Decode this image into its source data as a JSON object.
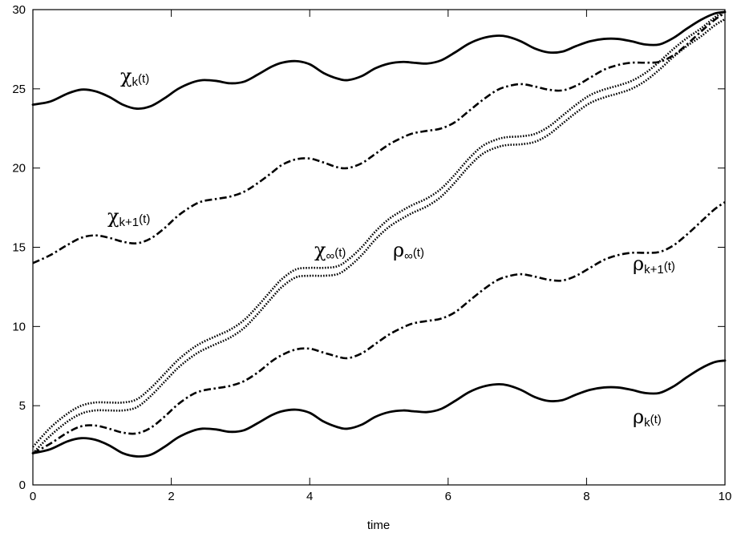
{
  "chart_data": {
    "type": "line",
    "xlabel": "time",
    "ylabel": "",
    "xlim": [
      0,
      10
    ],
    "ylim": [
      0,
      30
    ],
    "x_ticks": [
      "0",
      "2",
      "4",
      "6",
      "8",
      "10"
    ],
    "y_ticks": [
      "0",
      "5",
      "10",
      "15",
      "20",
      "25",
      "30"
    ],
    "grid": false,
    "series": [
      {
        "name": "χk(t)",
        "style": "solid",
        "x": [
          0,
          0.25,
          0.5,
          0.7,
          0.9,
          1.1,
          1.3,
          1.5,
          1.7,
          1.9,
          2.1,
          2.3,
          2.45,
          2.65,
          2.85,
          3.05,
          3.25,
          3.45,
          3.6,
          3.8,
          4.0,
          4.2,
          4.4,
          4.55,
          4.75,
          4.95,
          5.15,
          5.35,
          5.5,
          5.7,
          5.9,
          6.1,
          6.3,
          6.5,
          6.7,
          6.85,
          7.05,
          7.25,
          7.45,
          7.65,
          7.85,
          8.05,
          8.25,
          8.45,
          8.65,
          8.85,
          9.05,
          9.25,
          9.45,
          9.65,
          9.85,
          10.0
        ],
        "values": [
          24.0,
          24.2,
          24.7,
          24.95,
          24.85,
          24.5,
          24.0,
          23.75,
          23.9,
          24.4,
          25.0,
          25.4,
          25.55,
          25.5,
          25.35,
          25.45,
          25.9,
          26.4,
          26.65,
          26.75,
          26.55,
          26.0,
          25.65,
          25.55,
          25.8,
          26.3,
          26.6,
          26.7,
          26.65,
          26.6,
          26.8,
          27.3,
          27.85,
          28.2,
          28.35,
          28.3,
          28.0,
          27.55,
          27.3,
          27.35,
          27.7,
          28.0,
          28.15,
          28.15,
          28.0,
          27.8,
          27.8,
          28.2,
          28.8,
          29.35,
          29.75,
          29.85
        ]
      },
      {
        "name": "χk+1(t)",
        "style": "dashdot",
        "x": [
          0,
          0.25,
          0.5,
          0.7,
          0.9,
          1.1,
          1.3,
          1.5,
          1.7,
          1.9,
          2.1,
          2.3,
          2.45,
          2.65,
          2.85,
          3.05,
          3.25,
          3.45,
          3.6,
          3.8,
          4.0,
          4.2,
          4.4,
          4.55,
          4.75,
          4.95,
          5.15,
          5.35,
          5.5,
          5.7,
          5.9,
          6.1,
          6.3,
          6.5,
          6.7,
          6.85,
          7.05,
          7.25,
          7.45,
          7.65,
          7.85,
          8.05,
          8.25,
          8.45,
          8.65,
          8.85,
          9.05,
          9.25,
          9.45,
          9.65,
          9.85,
          10.0
        ],
        "values": [
          14.0,
          14.5,
          15.15,
          15.6,
          15.75,
          15.6,
          15.35,
          15.25,
          15.55,
          16.2,
          17.0,
          17.6,
          17.9,
          18.05,
          18.2,
          18.5,
          19.05,
          19.7,
          20.2,
          20.55,
          20.6,
          20.35,
          20.05,
          20.0,
          20.3,
          20.9,
          21.5,
          21.95,
          22.2,
          22.35,
          22.5,
          22.9,
          23.6,
          24.3,
          24.9,
          25.15,
          25.3,
          25.15,
          24.95,
          24.9,
          25.2,
          25.7,
          26.2,
          26.5,
          26.65,
          26.65,
          26.7,
          27.1,
          27.8,
          28.6,
          29.35,
          29.8
        ]
      },
      {
        "name": "χ∞(t)",
        "style": "dotted",
        "x": [
          0,
          0.25,
          0.5,
          0.7,
          0.9,
          1.1,
          1.3,
          1.5,
          1.7,
          1.9,
          2.1,
          2.3,
          2.45,
          2.65,
          2.85,
          3.05,
          3.25,
          3.45,
          3.6,
          3.8,
          4.0,
          4.2,
          4.4,
          4.55,
          4.75,
          4.95,
          5.15,
          5.35,
          5.5,
          5.7,
          5.9,
          6.1,
          6.3,
          6.5,
          6.7,
          6.85,
          7.05,
          7.25,
          7.45,
          7.65,
          7.85,
          8.05,
          8.25,
          8.45,
          8.65,
          8.85,
          9.05,
          9.25,
          9.45,
          9.65,
          9.85,
          10.0
        ],
        "values": [
          2.4,
          3.6,
          4.5,
          5.0,
          5.2,
          5.2,
          5.2,
          5.4,
          6.1,
          7.0,
          7.9,
          8.6,
          9.0,
          9.4,
          9.8,
          10.4,
          11.3,
          12.3,
          13.0,
          13.6,
          13.7,
          13.7,
          13.8,
          14.2,
          15.0,
          16.0,
          16.8,
          17.35,
          17.7,
          18.1,
          18.7,
          19.6,
          20.6,
          21.4,
          21.8,
          21.95,
          22.0,
          22.15,
          22.6,
          23.3,
          24.0,
          24.6,
          24.95,
          25.2,
          25.5,
          26.0,
          26.7,
          27.5,
          28.2,
          28.8,
          29.5,
          29.9
        ]
      },
      {
        "name": "ρ∞(t)",
        "style": "dotted",
        "x": [
          0,
          0.25,
          0.5,
          0.7,
          0.9,
          1.1,
          1.3,
          1.5,
          1.7,
          1.9,
          2.1,
          2.3,
          2.45,
          2.65,
          2.85,
          3.05,
          3.25,
          3.45,
          3.6,
          3.8,
          4.0,
          4.2,
          4.4,
          4.55,
          4.75,
          4.95,
          5.15,
          5.35,
          5.5,
          5.7,
          5.9,
          6.1,
          6.3,
          6.5,
          6.7,
          6.85,
          7.05,
          7.25,
          7.45,
          7.65,
          7.85,
          8.05,
          8.25,
          8.45,
          8.65,
          8.85,
          9.05,
          9.25,
          9.45,
          9.65,
          9.85,
          10.0
        ],
        "values": [
          2.0,
          3.1,
          4.0,
          4.5,
          4.7,
          4.7,
          4.7,
          4.9,
          5.6,
          6.5,
          7.4,
          8.1,
          8.5,
          8.9,
          9.3,
          9.9,
          10.8,
          11.8,
          12.5,
          13.1,
          13.2,
          13.2,
          13.3,
          13.7,
          14.5,
          15.5,
          16.3,
          16.85,
          17.2,
          17.6,
          18.2,
          19.1,
          20.1,
          20.9,
          21.3,
          21.45,
          21.5,
          21.65,
          22.1,
          22.8,
          23.5,
          24.1,
          24.45,
          24.7,
          25.0,
          25.5,
          26.2,
          27.0,
          27.7,
          28.3,
          29.0,
          29.4
        ]
      },
      {
        "name": "ρk+1(t)",
        "style": "dashdot",
        "x": [
          0,
          0.25,
          0.5,
          0.7,
          0.9,
          1.1,
          1.3,
          1.5,
          1.7,
          1.9,
          2.1,
          2.3,
          2.45,
          2.65,
          2.85,
          3.05,
          3.25,
          3.45,
          3.6,
          3.8,
          4.0,
          4.2,
          4.4,
          4.55,
          4.75,
          4.95,
          5.15,
          5.35,
          5.5,
          5.7,
          5.9,
          6.1,
          6.3,
          6.5,
          6.7,
          6.85,
          7.05,
          7.25,
          7.45,
          7.65,
          7.85,
          8.05,
          8.25,
          8.45,
          8.65,
          8.85,
          9.05,
          9.25,
          9.45,
          9.65,
          9.85,
          10.0
        ],
        "values": [
          2.0,
          2.6,
          3.3,
          3.7,
          3.75,
          3.55,
          3.3,
          3.25,
          3.6,
          4.3,
          5.1,
          5.7,
          5.95,
          6.1,
          6.25,
          6.55,
          7.1,
          7.8,
          8.2,
          8.55,
          8.6,
          8.35,
          8.1,
          8.0,
          8.3,
          8.9,
          9.5,
          9.95,
          10.2,
          10.35,
          10.5,
          10.9,
          11.6,
          12.3,
          12.9,
          13.15,
          13.3,
          13.15,
          12.95,
          12.9,
          13.2,
          13.7,
          14.2,
          14.5,
          14.65,
          14.65,
          14.7,
          15.1,
          15.8,
          16.6,
          17.4,
          17.85
        ]
      },
      {
        "name": "ρk(t)",
        "style": "solid",
        "x": [
          0,
          0.25,
          0.5,
          0.7,
          0.9,
          1.1,
          1.3,
          1.5,
          1.7,
          1.9,
          2.1,
          2.3,
          2.45,
          2.65,
          2.85,
          3.05,
          3.25,
          3.45,
          3.6,
          3.8,
          4.0,
          4.2,
          4.4,
          4.55,
          4.75,
          4.95,
          5.15,
          5.35,
          5.5,
          5.7,
          5.9,
          6.1,
          6.3,
          6.5,
          6.7,
          6.85,
          7.05,
          7.25,
          7.45,
          7.65,
          7.85,
          8.05,
          8.25,
          8.45,
          8.65,
          8.85,
          9.05,
          9.25,
          9.45,
          9.65,
          9.85,
          10.0
        ],
        "values": [
          2.0,
          2.25,
          2.75,
          2.95,
          2.85,
          2.5,
          2.0,
          1.8,
          1.9,
          2.4,
          3.0,
          3.4,
          3.55,
          3.5,
          3.35,
          3.45,
          3.9,
          4.4,
          4.65,
          4.75,
          4.55,
          4.0,
          3.65,
          3.55,
          3.8,
          4.3,
          4.6,
          4.7,
          4.65,
          4.6,
          4.8,
          5.3,
          5.85,
          6.2,
          6.35,
          6.3,
          6.0,
          5.55,
          5.3,
          5.35,
          5.7,
          6.0,
          6.15,
          6.15,
          6.0,
          5.8,
          5.8,
          6.2,
          6.8,
          7.35,
          7.75,
          7.85
        ]
      }
    ],
    "labels": [
      {
        "base": "χ",
        "sub": "k",
        "tail": "(t)"
      },
      {
        "base": "χ",
        "sub": "k+1",
        "tail": "(t)"
      },
      {
        "base": "χ",
        "sub": "∞",
        "tail": "(t)"
      },
      {
        "base": "ρ",
        "sub": "∞",
        "tail": "(t)"
      },
      {
        "base": "ρ",
        "sub": "k+1",
        "tail": "(t)"
      },
      {
        "base": "ρ",
        "sub": "k",
        "tail": "(t)"
      }
    ]
  }
}
